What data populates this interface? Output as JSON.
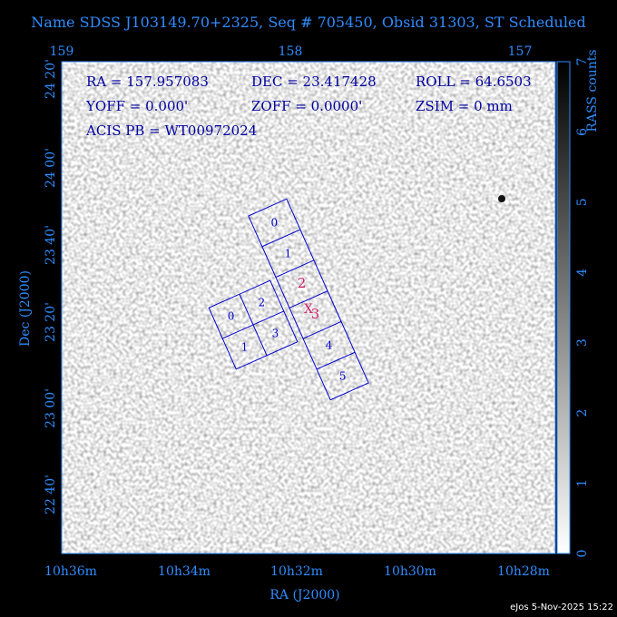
{
  "title": "Name SDSS J103149.70+2325, Seq # 705450, Obsid 31303, ST Scheduled",
  "axes": {
    "top_ticks": [
      "159",
      "158",
      "157"
    ],
    "left_ticks": [
      "24 20'",
      "24 00'",
      "23 40'",
      "23 20'",
      "23 00'",
      "22 40'"
    ],
    "bottom_ticks": [
      "10h36m",
      "10h34m",
      "10h32m",
      "10h30m",
      "10h28m"
    ],
    "x_label": "RA (J2000)",
    "y_label": "Dec (J2000)"
  },
  "colorbar": {
    "label": "RASS counts",
    "ticks": [
      "0",
      "1",
      "2",
      "3",
      "4",
      "5",
      "6",
      "7"
    ]
  },
  "info": {
    "ra": "RA = 157.957083",
    "dec": "DEC = 23.417428",
    "roll": "ROLL = 64.6503",
    "yoff": "YOFF = 0.000'",
    "zoff": "ZOFF = 0.0000'",
    "zsim": "ZSIM = 0 mm",
    "acis_pb": "ACIS PB = WT00972024"
  },
  "chips": {
    "s_array": [
      "0",
      "1",
      "2",
      "3",
      "4",
      "5"
    ],
    "i_array": [
      "0",
      "1",
      "2",
      "3"
    ]
  },
  "footer": "eJos  5-Nov-2025 15:22"
}
